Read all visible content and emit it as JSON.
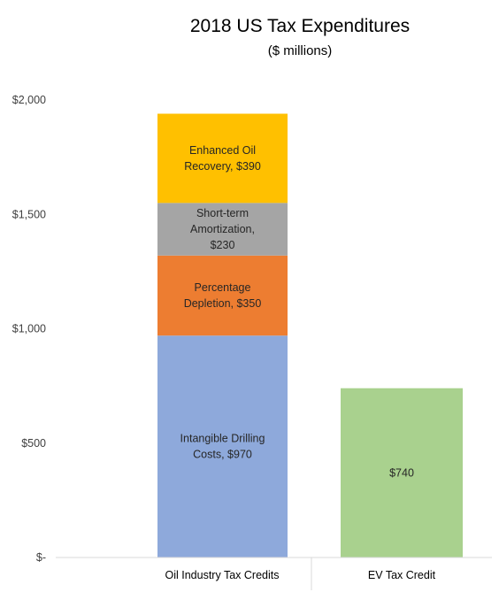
{
  "chart_data": {
    "type": "bar",
    "stacked": true,
    "title": "2018 US Tax Expenditures",
    "subtitle": "($ millions)",
    "xlabel": "",
    "ylabel": "",
    "ylim": [
      0,
      2000
    ],
    "y_ticks": [
      {
        "value": 0,
        "label": "$-"
      },
      {
        "value": 500,
        "label": "$500"
      },
      {
        "value": 1000,
        "label": "$1,000"
      },
      {
        "value": 1500,
        "label": "$1,500"
      },
      {
        "value": 2000,
        "label": "$2,000"
      }
    ],
    "grid": false,
    "legend": "none",
    "categories": [
      "Oil Industry Tax Credits",
      "EV Tax Credit"
    ],
    "bars": [
      {
        "category": "Oil Industry Tax Credits",
        "segments": [
          {
            "label_lines": [
              "Intangible Drilling",
              "Costs,  $970"
            ],
            "value": 970,
            "color": "#8EA9DB"
          },
          {
            "label_lines": [
              "Percentage",
              "Depletion,  $350"
            ],
            "value": 350,
            "color": "#ED7D31"
          },
          {
            "label_lines": [
              "Short-term",
              "Amortization,",
              "$230"
            ],
            "value": 230,
            "color": "#A5A5A5"
          },
          {
            "label_lines": [
              "Enhanced Oil",
              "Recovery,  $390"
            ],
            "value": 390,
            "color": "#FFC000"
          }
        ]
      },
      {
        "category": "EV Tax Credit",
        "segments": [
          {
            "label_lines": [
              "$740"
            ],
            "value": 740,
            "color": "#A9D18E"
          }
        ]
      }
    ]
  }
}
